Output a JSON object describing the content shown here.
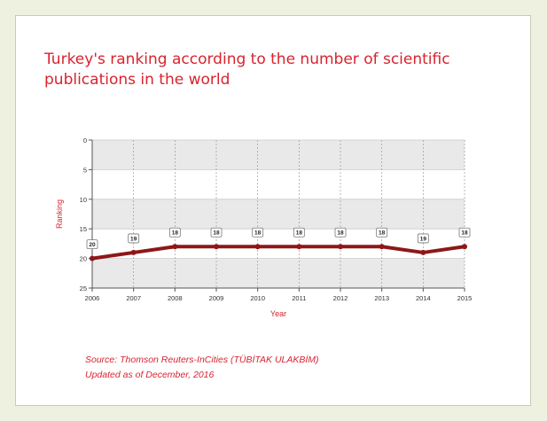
{
  "chart_data": {
    "type": "line",
    "title": "Turkey's ranking according to the number of scientific publications in the world",
    "xlabel": "Year",
    "ylabel": "Ranking",
    "x": [
      "2006",
      "2007",
      "2008",
      "2009",
      "2010",
      "2011",
      "2012",
      "2013",
      "2014",
      "2015"
    ],
    "series": [
      {
        "values": [
          20,
          19,
          18,
          18,
          18,
          18,
          18,
          18,
          19,
          18
        ]
      }
    ],
    "ylim": [
      0,
      25
    ],
    "y_reversed": true,
    "yticks": [
      0,
      5,
      10,
      15,
      20,
      25
    ],
    "grid": true,
    "data_labels": true,
    "line_color": "#8e1717",
    "accent_color": "#d8232f"
  },
  "source": {
    "line1": "Source: Thomson Reuters-InCities (TÜBİTAK ULAKBİM)",
    "line2": "Updated as of December, 2016"
  }
}
